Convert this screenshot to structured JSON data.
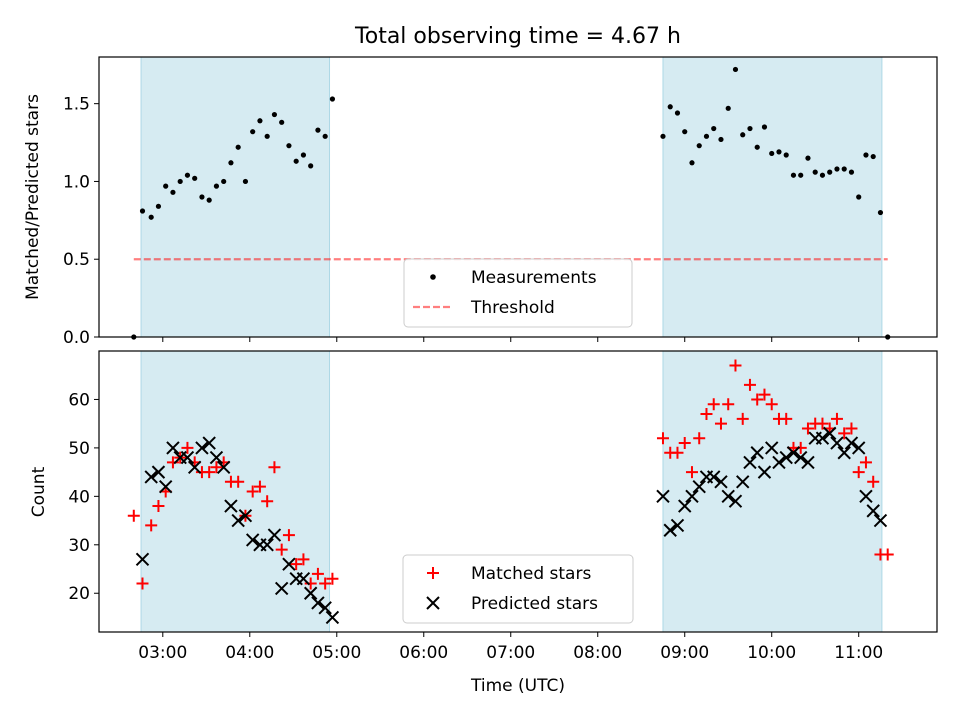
{
  "figure": {
    "title": "Total observing time = 4.67 h",
    "xlabel": "Time (UTC)"
  },
  "colors": {
    "shade": "#add8e6",
    "measure": "#000000",
    "threshold": "#ff0000",
    "matched": "#ff0000",
    "predicted": "#000000"
  },
  "chart_data": [
    {
      "type": "scatter",
      "ylabel": "Matched/Predicted stars",
      "xlim": [
        "02:16",
        "11:54"
      ],
      "ylim": [
        0,
        1.8
      ],
      "x_ticks": [
        "03:00",
        "04:00",
        "05:00",
        "06:00",
        "07:00",
        "08:00",
        "09:00",
        "10:00",
        "11:00"
      ],
      "y_ticks": [
        "0.0",
        "0.5",
        "1.0",
        "1.5"
      ],
      "shaded_intervals": [
        [
          "02:45",
          "04:55"
        ],
        [
          "08:45",
          "11:16"
        ]
      ],
      "legend_position": "lower center",
      "legend": [
        {
          "label": "Measurements",
          "marker": "dot"
        },
        {
          "label": "Threshold",
          "marker": "dashed-line"
        }
      ],
      "threshold": 0.5,
      "series": [
        {
          "name": "Measurements",
          "points": [
            [
              "02:40",
              0.0
            ],
            [
              "02:46",
              0.81
            ],
            [
              "02:52",
              0.77
            ],
            [
              "02:57",
              0.84
            ],
            [
              "03:02",
              0.97
            ],
            [
              "03:07",
              0.93
            ],
            [
              "03:12",
              1.0
            ],
            [
              "03:17",
              1.04
            ],
            [
              "03:22",
              1.02
            ],
            [
              "03:27",
              0.9
            ],
            [
              "03:32",
              0.88
            ],
            [
              "03:37",
              0.97
            ],
            [
              "03:42",
              1.0
            ],
            [
              "03:47",
              1.12
            ],
            [
              "03:52",
              1.22
            ],
            [
              "03:57",
              1.0
            ],
            [
              "04:02",
              1.32
            ],
            [
              "04:07",
              1.39
            ],
            [
              "04:12",
              1.29
            ],
            [
              "04:17",
              1.43
            ],
            [
              "04:22",
              1.38
            ],
            [
              "04:27",
              1.23
            ],
            [
              "04:32",
              1.13
            ],
            [
              "04:37",
              1.17
            ],
            [
              "04:42",
              1.1
            ],
            [
              "04:47",
              1.33
            ],
            [
              "04:52",
              1.29
            ],
            [
              "04:57",
              1.53
            ],
            [
              "08:45",
              1.29
            ],
            [
              "08:50",
              1.48
            ],
            [
              "08:55",
              1.44
            ],
            [
              "09:00",
              1.32
            ],
            [
              "09:05",
              1.12
            ],
            [
              "09:10",
              1.23
            ],
            [
              "09:15",
              1.29
            ],
            [
              "09:20",
              1.34
            ],
            [
              "09:25",
              1.27
            ],
            [
              "09:30",
              1.47
            ],
            [
              "09:35",
              1.72
            ],
            [
              "09:40",
              1.3
            ],
            [
              "09:45",
              1.34
            ],
            [
              "09:50",
              1.22
            ],
            [
              "09:55",
              1.35
            ],
            [
              "10:00",
              1.18
            ],
            [
              "10:05",
              1.19
            ],
            [
              "10:10",
              1.17
            ],
            [
              "10:15",
              1.04
            ],
            [
              "10:20",
              1.04
            ],
            [
              "10:25",
              1.15
            ],
            [
              "10:30",
              1.06
            ],
            [
              "10:35",
              1.04
            ],
            [
              "10:40",
              1.06
            ],
            [
              "10:45",
              1.08
            ],
            [
              "10:50",
              1.08
            ],
            [
              "10:55",
              1.06
            ],
            [
              "11:00",
              0.9
            ],
            [
              "11:05",
              1.17
            ],
            [
              "11:10",
              1.16
            ],
            [
              "11:15",
              0.8
            ],
            [
              "11:20",
              0.0
            ]
          ]
        }
      ]
    },
    {
      "type": "scatter",
      "ylabel": "Count",
      "xlim": [
        "02:16",
        "11:54"
      ],
      "ylim": [
        12,
        70
      ],
      "x_ticks": [
        "03:00",
        "04:00",
        "05:00",
        "06:00",
        "07:00",
        "08:00",
        "09:00",
        "10:00",
        "11:00"
      ],
      "y_ticks": [
        "20",
        "30",
        "40",
        "50",
        "60"
      ],
      "shaded_intervals": [
        [
          "02:45",
          "04:55"
        ],
        [
          "08:45",
          "11:16"
        ]
      ],
      "legend_position": "lower center",
      "legend": [
        {
          "label": "Matched stars",
          "marker": "plus"
        },
        {
          "label": "Predicted stars",
          "marker": "x"
        }
      ],
      "series": [
        {
          "name": "Matched stars",
          "points": [
            [
              "02:40",
              36
            ],
            [
              "02:46",
              22
            ],
            [
              "02:52",
              34
            ],
            [
              "02:57",
              38
            ],
            [
              "03:02",
              41
            ],
            [
              "03:07",
              47
            ],
            [
              "03:12",
              48
            ],
            [
              "03:17",
              50
            ],
            [
              "03:22",
              47
            ],
            [
              "03:27",
              45
            ],
            [
              "03:32",
              45
            ],
            [
              "03:37",
              46
            ],
            [
              "03:42",
              47
            ],
            [
              "03:47",
              43
            ],
            [
              "03:52",
              43
            ],
            [
              "03:57",
              36
            ],
            [
              "04:02",
              41
            ],
            [
              "04:07",
              42
            ],
            [
              "04:12",
              39
            ],
            [
              "04:17",
              46
            ],
            [
              "04:22",
              29
            ],
            [
              "04:27",
              32
            ],
            [
              "04:32",
              26
            ],
            [
              "04:37",
              27
            ],
            [
              "04:42",
              22
            ],
            [
              "04:47",
              24
            ],
            [
              "04:52",
              22
            ],
            [
              "04:57",
              23
            ],
            [
              "08:45",
              52
            ],
            [
              "08:50",
              49
            ],
            [
              "08:55",
              49
            ],
            [
              "09:00",
              51
            ],
            [
              "09:05",
              45
            ],
            [
              "09:10",
              52
            ],
            [
              "09:15",
              57
            ],
            [
              "09:20",
              59
            ],
            [
              "09:25",
              55
            ],
            [
              "09:30",
              59
            ],
            [
              "09:35",
              67
            ],
            [
              "09:40",
              56
            ],
            [
              "09:45",
              63
            ],
            [
              "09:50",
              60
            ],
            [
              "09:55",
              61
            ],
            [
              "10:00",
              59
            ],
            [
              "10:05",
              56
            ],
            [
              "10:10",
              56
            ],
            [
              "10:15",
              50
            ],
            [
              "10:20",
              50
            ],
            [
              "10:25",
              54
            ],
            [
              "10:30",
              55
            ],
            [
              "10:35",
              55
            ],
            [
              "10:40",
              54
            ],
            [
              "10:45",
              56
            ],
            [
              "10:50",
              53
            ],
            [
              "10:55",
              54
            ],
            [
              "11:00",
              45
            ],
            [
              "11:05",
              47
            ],
            [
              "11:10",
              43
            ],
            [
              "11:15",
              28
            ],
            [
              "11:20",
              28
            ]
          ]
        },
        {
          "name": "Predicted stars",
          "points": [
            [
              "02:46",
              27
            ],
            [
              "02:52",
              44
            ],
            [
              "02:57",
              45
            ],
            [
              "03:02",
              42
            ],
            [
              "03:07",
              50
            ],
            [
              "03:12",
              48
            ],
            [
              "03:17",
              48
            ],
            [
              "03:22",
              46
            ],
            [
              "03:27",
              50
            ],
            [
              "03:32",
              51
            ],
            [
              "03:37",
              48
            ],
            [
              "03:42",
              46
            ],
            [
              "03:47",
              38
            ],
            [
              "03:52",
              35
            ],
            [
              "03:57",
              36
            ],
            [
              "04:02",
              31
            ],
            [
              "04:07",
              30
            ],
            [
              "04:12",
              30
            ],
            [
              "04:17",
              32
            ],
            [
              "04:22",
              21
            ],
            [
              "04:27",
              26
            ],
            [
              "04:32",
              23
            ],
            [
              "04:37",
              23
            ],
            [
              "04:42",
              20
            ],
            [
              "04:47",
              18
            ],
            [
              "04:52",
              17
            ],
            [
              "04:57",
              15
            ],
            [
              "08:45",
              40
            ],
            [
              "08:50",
              33
            ],
            [
              "08:55",
              34
            ],
            [
              "09:00",
              38
            ],
            [
              "09:05",
              40
            ],
            [
              "09:10",
              42
            ],
            [
              "09:15",
              44
            ],
            [
              "09:20",
              44
            ],
            [
              "09:25",
              43
            ],
            [
              "09:30",
              40
            ],
            [
              "09:35",
              39
            ],
            [
              "09:40",
              43
            ],
            [
              "09:45",
              47
            ],
            [
              "09:50",
              49
            ],
            [
              "09:55",
              45
            ],
            [
              "10:00",
              50
            ],
            [
              "10:05",
              47
            ],
            [
              "10:10",
              48
            ],
            [
              "10:15",
              49
            ],
            [
              "10:20",
              48
            ],
            [
              "10:25",
              47
            ],
            [
              "10:30",
              52
            ],
            [
              "10:35",
              52
            ],
            [
              "10:40",
              53
            ],
            [
              "10:45",
              51
            ],
            [
              "10:50",
              49
            ],
            [
              "10:55",
              51
            ],
            [
              "11:00",
              50
            ],
            [
              "11:05",
              40
            ],
            [
              "11:10",
              37
            ],
            [
              "11:15",
              35
            ]
          ]
        }
      ]
    }
  ]
}
